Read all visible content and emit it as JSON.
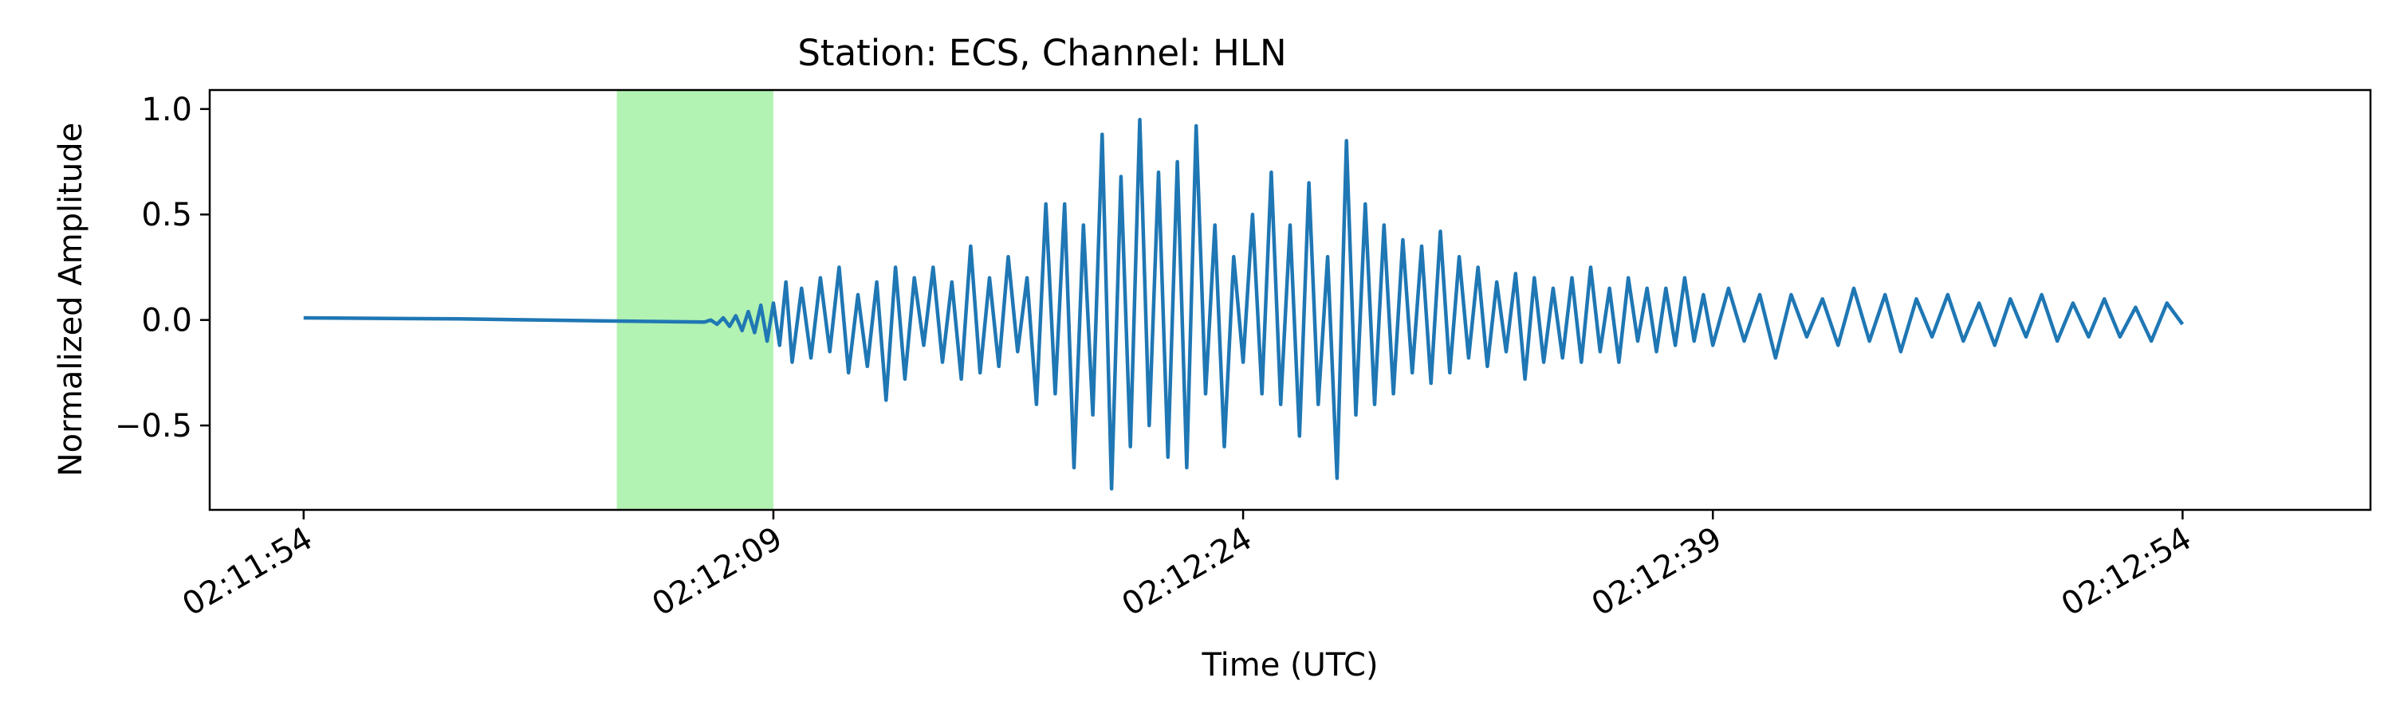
{
  "chart_data": {
    "type": "line",
    "title": "Station: ECS, Channel: HLN",
    "xlabel": "Time (UTC)",
    "ylabel": "Normalized Amplitude",
    "x_units": "seconds after 02:11:54 UTC",
    "xlim": [
      -3,
      66
    ],
    "ylim": [
      -0.9,
      1.09
    ],
    "x_ticks": [
      0,
      15,
      30,
      45,
      60
    ],
    "x_tick_labels": [
      "02:11:54",
      "02:12:09",
      "02:12:24",
      "02:12:39",
      "02:12:54"
    ],
    "y_ticks": [
      -0.5,
      0.0,
      0.5,
      1.0
    ],
    "y_tick_labels": [
      "−0.5",
      "0.0",
      "0.5",
      "1.0"
    ],
    "grid": false,
    "highlight_window": {
      "start": 10,
      "end": 15,
      "color": "#b2f2b2"
    },
    "series": [
      {
        "color": "#1f77b4",
        "points": [
          [
            0.0,
            0.01
          ],
          [
            5.0,
            0.005
          ],
          [
            10.0,
            -0.005
          ],
          [
            12.8,
            -0.01
          ],
          [
            13.0,
            0.0
          ],
          [
            13.2,
            -0.02
          ],
          [
            13.4,
            0.01
          ],
          [
            13.6,
            -0.03
          ],
          [
            13.8,
            0.02
          ],
          [
            14.0,
            -0.05
          ],
          [
            14.2,
            0.04
          ],
          [
            14.4,
            -0.06
          ],
          [
            14.6,
            0.07
          ],
          [
            14.8,
            -0.1
          ],
          [
            15.0,
            0.08
          ],
          [
            15.2,
            -0.12
          ],
          [
            15.4,
            0.18
          ],
          [
            15.6,
            -0.2
          ],
          [
            15.9,
            0.15
          ],
          [
            16.2,
            -0.18
          ],
          [
            16.5,
            0.2
          ],
          [
            16.8,
            -0.15
          ],
          [
            17.1,
            0.25
          ],
          [
            17.4,
            -0.25
          ],
          [
            17.7,
            0.12
          ],
          [
            18.0,
            -0.22
          ],
          [
            18.3,
            0.18
          ],
          [
            18.6,
            -0.38
          ],
          [
            18.9,
            0.25
          ],
          [
            19.2,
            -0.28
          ],
          [
            19.5,
            0.2
          ],
          [
            19.8,
            -0.12
          ],
          [
            20.1,
            0.25
          ],
          [
            20.4,
            -0.2
          ],
          [
            20.7,
            0.18
          ],
          [
            21.0,
            -0.28
          ],
          [
            21.3,
            0.35
          ],
          [
            21.6,
            -0.25
          ],
          [
            21.9,
            0.2
          ],
          [
            22.2,
            -0.22
          ],
          [
            22.5,
            0.3
          ],
          [
            22.8,
            -0.15
          ],
          [
            23.1,
            0.2
          ],
          [
            23.4,
            -0.4
          ],
          [
            23.7,
            0.55
          ],
          [
            24.0,
            -0.35
          ],
          [
            24.3,
            0.55
          ],
          [
            24.6,
            -0.7
          ],
          [
            24.9,
            0.45
          ],
          [
            25.2,
            -0.45
          ],
          [
            25.5,
            0.88
          ],
          [
            25.8,
            -0.8
          ],
          [
            26.1,
            0.68
          ],
          [
            26.4,
            -0.6
          ],
          [
            26.7,
            0.95
          ],
          [
            27.0,
            -0.5
          ],
          [
            27.3,
            0.7
          ],
          [
            27.6,
            -0.65
          ],
          [
            27.9,
            0.75
          ],
          [
            28.2,
            -0.7
          ],
          [
            28.5,
            0.92
          ],
          [
            28.8,
            -0.35
          ],
          [
            29.1,
            0.45
          ],
          [
            29.4,
            -0.6
          ],
          [
            29.7,
            0.3
          ],
          [
            30.0,
            -0.2
          ],
          [
            30.3,
            0.5
          ],
          [
            30.6,
            -0.35
          ],
          [
            30.9,
            0.7
          ],
          [
            31.2,
            -0.4
          ],
          [
            31.5,
            0.45
          ],
          [
            31.8,
            -0.55
          ],
          [
            32.1,
            0.65
          ],
          [
            32.4,
            -0.4
          ],
          [
            32.7,
            0.3
          ],
          [
            33.0,
            -0.75
          ],
          [
            33.3,
            0.85
          ],
          [
            33.6,
            -0.45
          ],
          [
            33.9,
            0.55
          ],
          [
            34.2,
            -0.4
          ],
          [
            34.5,
            0.45
          ],
          [
            34.8,
            -0.35
          ],
          [
            35.1,
            0.38
          ],
          [
            35.4,
            -0.25
          ],
          [
            35.7,
            0.35
          ],
          [
            36.0,
            -0.3
          ],
          [
            36.3,
            0.42
          ],
          [
            36.6,
            -0.25
          ],
          [
            36.9,
            0.3
          ],
          [
            37.2,
            -0.18
          ],
          [
            37.5,
            0.25
          ],
          [
            37.8,
            -0.22
          ],
          [
            38.1,
            0.18
          ],
          [
            38.4,
            -0.15
          ],
          [
            38.7,
            0.22
          ],
          [
            39.0,
            -0.28
          ],
          [
            39.3,
            0.2
          ],
          [
            39.6,
            -0.2
          ],
          [
            39.9,
            0.15
          ],
          [
            40.2,
            -0.18
          ],
          [
            40.5,
            0.2
          ],
          [
            40.8,
            -0.2
          ],
          [
            41.1,
            0.25
          ],
          [
            41.4,
            -0.15
          ],
          [
            41.7,
            0.15
          ],
          [
            42.0,
            -0.2
          ],
          [
            42.3,
            0.2
          ],
          [
            42.6,
            -0.1
          ],
          [
            42.9,
            0.15
          ],
          [
            43.2,
            -0.15
          ],
          [
            43.5,
            0.15
          ],
          [
            43.8,
            -0.12
          ],
          [
            44.1,
            0.2
          ],
          [
            44.4,
            -0.1
          ],
          [
            44.7,
            0.12
          ],
          [
            45.0,
            -0.12
          ],
          [
            45.5,
            0.15
          ],
          [
            46.0,
            -0.1
          ],
          [
            46.5,
            0.12
          ],
          [
            47.0,
            -0.18
          ],
          [
            47.5,
            0.12
          ],
          [
            48.0,
            -0.08
          ],
          [
            48.5,
            0.1
          ],
          [
            49.0,
            -0.12
          ],
          [
            49.5,
            0.15
          ],
          [
            50.0,
            -0.1
          ],
          [
            50.5,
            0.12
          ],
          [
            51.0,
            -0.15
          ],
          [
            51.5,
            0.1
          ],
          [
            52.0,
            -0.08
          ],
          [
            52.5,
            0.12
          ],
          [
            53.0,
            -0.1
          ],
          [
            53.5,
            0.08
          ],
          [
            54.0,
            -0.12
          ],
          [
            54.5,
            0.1
          ],
          [
            55.0,
            -0.08
          ],
          [
            55.5,
            0.12
          ],
          [
            56.0,
            -0.1
          ],
          [
            56.5,
            0.08
          ],
          [
            57.0,
            -0.08
          ],
          [
            57.5,
            0.1
          ],
          [
            58.0,
            -0.08
          ],
          [
            58.5,
            0.06
          ],
          [
            59.0,
            -0.1
          ],
          [
            59.5,
            0.08
          ],
          [
            60.0,
            -0.02
          ]
        ]
      }
    ]
  }
}
